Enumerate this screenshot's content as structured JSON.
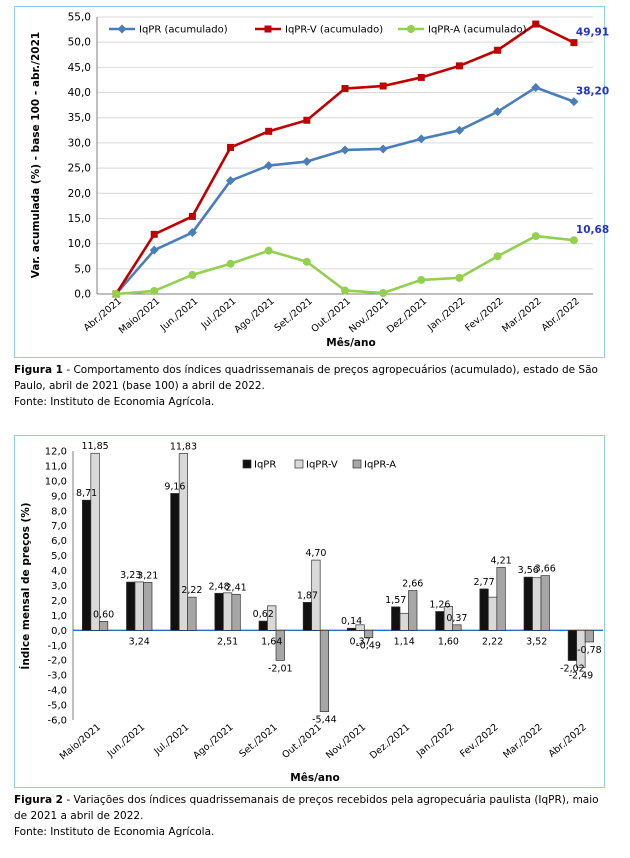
{
  "chart_data": [
    {
      "type": "line",
      "ylabel": "Var. acumulada (%) - base 100 - abr./2021",
      "xlabel": "Mês/ano",
      "ylim": [
        0,
        55
      ],
      "yticks": [
        "0,0",
        "5,0",
        "10,0",
        "15,0",
        "20,0",
        "25,0",
        "30,0",
        "35,0",
        "40,0",
        "45,0",
        "50,0",
        "55,0"
      ],
      "categories": [
        "Abr./2021",
        "Maio/2021",
        "Jun./2021",
        "Jul./2021",
        "Ago./2021",
        "Set./2021",
        "Out./2021",
        "Nov./2021",
        "Dez./2021",
        "Jan./2022",
        "Fev./2022",
        "Mar./2022",
        "Abr./2022"
      ],
      "legend_position": "top",
      "series": [
        {
          "name": "IqPR (acumulado)",
          "color": "#4a7ebb",
          "marker": "diamond",
          "values": [
            0,
            8.7,
            12.2,
            22.5,
            25.5,
            26.3,
            28.6,
            28.8,
            30.8,
            32.5,
            36.2,
            41.0,
            38.2
          ],
          "end_label": "38,20",
          "end_label_color": "#2233cc"
        },
        {
          "name": "IqPR-V  (acumulado)",
          "color": "#c00000",
          "marker": "square",
          "values": [
            0,
            11.85,
            15.4,
            29.1,
            32.3,
            34.5,
            40.8,
            41.3,
            43.0,
            45.3,
            48.4,
            53.6,
            49.91
          ],
          "end_label": "49,91",
          "end_label_color": "#2233cc"
        },
        {
          "name": "IqPR-A  (acumulado)",
          "color": "#92d050",
          "marker": "circle",
          "values": [
            0,
            0.6,
            3.8,
            6.0,
            8.6,
            6.4,
            0.7,
            0.2,
            2.8,
            3.2,
            7.5,
            11.5,
            10.68
          ],
          "end_label": "10,68",
          "end_label_color": "#2233cc"
        }
      ]
    },
    {
      "type": "bar",
      "ylabel": "Índice mensal de preços (%)",
      "xlabel": "Mês/ano",
      "ylim": [
        -6,
        12
      ],
      "yticks": [
        "-6,0",
        "-5,0",
        "-4,0",
        "-3,0",
        "-2,0",
        "-1,0",
        "0,0",
        "1,0",
        "2,0",
        "3,0",
        "4,0",
        "5,0",
        "6,0",
        "7,0",
        "8,0",
        "9,0",
        "10,0",
        "11,0",
        "12,0"
      ],
      "categories": [
        "Maio/2021",
        "Jun./2021",
        "Jul./2021",
        "Ago./2021",
        "Set./2021",
        "Out./2021",
        "Nov./2021",
        "Dez./2021",
        "Jan./2022",
        "Fev./2022",
        "Mar./2022",
        "Abr./2022"
      ],
      "legend_position": "top",
      "series": [
        {
          "name": "IqPR",
          "color": "#111111",
          "values": [
            8.71,
            3.23,
            9.16,
            2.48,
            0.62,
            1.87,
            0.14,
            1.57,
            1.26,
            2.77,
            3.56,
            -2.02
          ],
          "labels": [
            "8,71",
            "3,23",
            "9,16",
            "2,48",
            "0,62",
            "1,87",
            "0,14",
            "1,57",
            "1,26",
            "2,77",
            "3,56",
            "-2,02"
          ]
        },
        {
          "name": "IqPR-V",
          "color": "#d9d9d9",
          "values": [
            11.85,
            3.24,
            11.83,
            2.51,
            1.64,
            4.7,
            0.37,
            1.14,
            1.6,
            2.22,
            3.52,
            -2.49
          ],
          "labels": [
            "11,85",
            "3,24",
            "11,83",
            "2,51",
            "1,64",
            "4,70",
            "0,37",
            "1,14",
            "1,60",
            "2,22",
            "3,52",
            "-2,49"
          ]
        },
        {
          "name": "IqPR-A",
          "color": "#a6a6a6",
          "values": [
            0.6,
            3.21,
            2.22,
            2.41,
            -2.01,
            -5.44,
            -0.49,
            2.66,
            0.37,
            4.21,
            3.66,
            -0.78
          ],
          "labels": [
            "0,60",
            "3,21",
            "2,22",
            "2,41",
            "-2,01",
            "-5,44",
            "-0,49",
            "2,66",
            "0,37",
            "4,21",
            "3,66",
            "-0,78"
          ]
        }
      ]
    }
  ],
  "captions": {
    "fig1_label": "Figura 1",
    "fig1_text": " - Comportamento dos índices quadrissemanais de preços agropecuários (acumulado), estado de São Paulo, abril de 2021 (base 100) a abril de 2022.",
    "fig1_source": "Fonte: Instituto de Economia Agrícola.",
    "fig2_label": "Figura 2",
    "fig2_text": " - Variações dos índices quadrissemanais de preços recebidos pela agropecuária paulista (IqPR), maio de 2021 a abril de 2022.",
    "fig2_source": "Fonte: Instituto de Economia Agrícola."
  }
}
